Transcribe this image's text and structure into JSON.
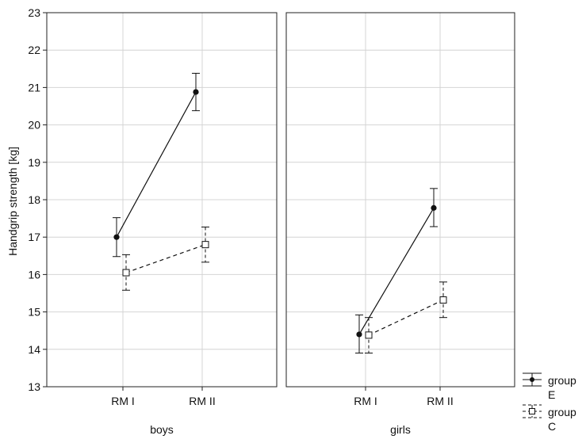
{
  "chart_data": {
    "type": "line",
    "ylabel": "Handgrip strength [kg]",
    "ylim": [
      13,
      23
    ],
    "yticks": [
      13,
      14,
      15,
      16,
      17,
      18,
      19,
      20,
      21,
      22,
      23
    ],
    "grid": true,
    "legend_position": "bottom-right",
    "panels": [
      {
        "name": "boys",
        "categories": [
          "RM I",
          "RM II"
        ],
        "series": [
          {
            "name": "group E",
            "values": [
              17.0,
              20.88
            ],
            "lower": [
              16.48,
              20.38
            ],
            "upper": [
              17.52,
              21.38
            ]
          },
          {
            "name": "group C",
            "values": [
              16.05,
              16.8
            ],
            "lower": [
              15.58,
              16.33
            ],
            "upper": [
              16.53,
              17.27
            ]
          }
        ]
      },
      {
        "name": "girls",
        "categories": [
          "RM I",
          "RM II"
        ],
        "series": [
          {
            "name": "group E",
            "values": [
              14.4,
              17.78
            ],
            "lower": [
              13.9,
              17.28
            ],
            "upper": [
              14.92,
              18.3
            ]
          },
          {
            "name": "group C",
            "values": [
              14.38,
              15.32
            ],
            "lower": [
              13.9,
              14.85
            ],
            "upper": [
              14.85,
              15.8
            ]
          }
        ]
      }
    ],
    "legend": [
      {
        "label_line1": "group",
        "label_line2": "E",
        "style": "solid",
        "marker": "filled-circle"
      },
      {
        "label_line1": "group",
        "label_line2": "C",
        "style": "dashed",
        "marker": "open-square"
      }
    ]
  }
}
